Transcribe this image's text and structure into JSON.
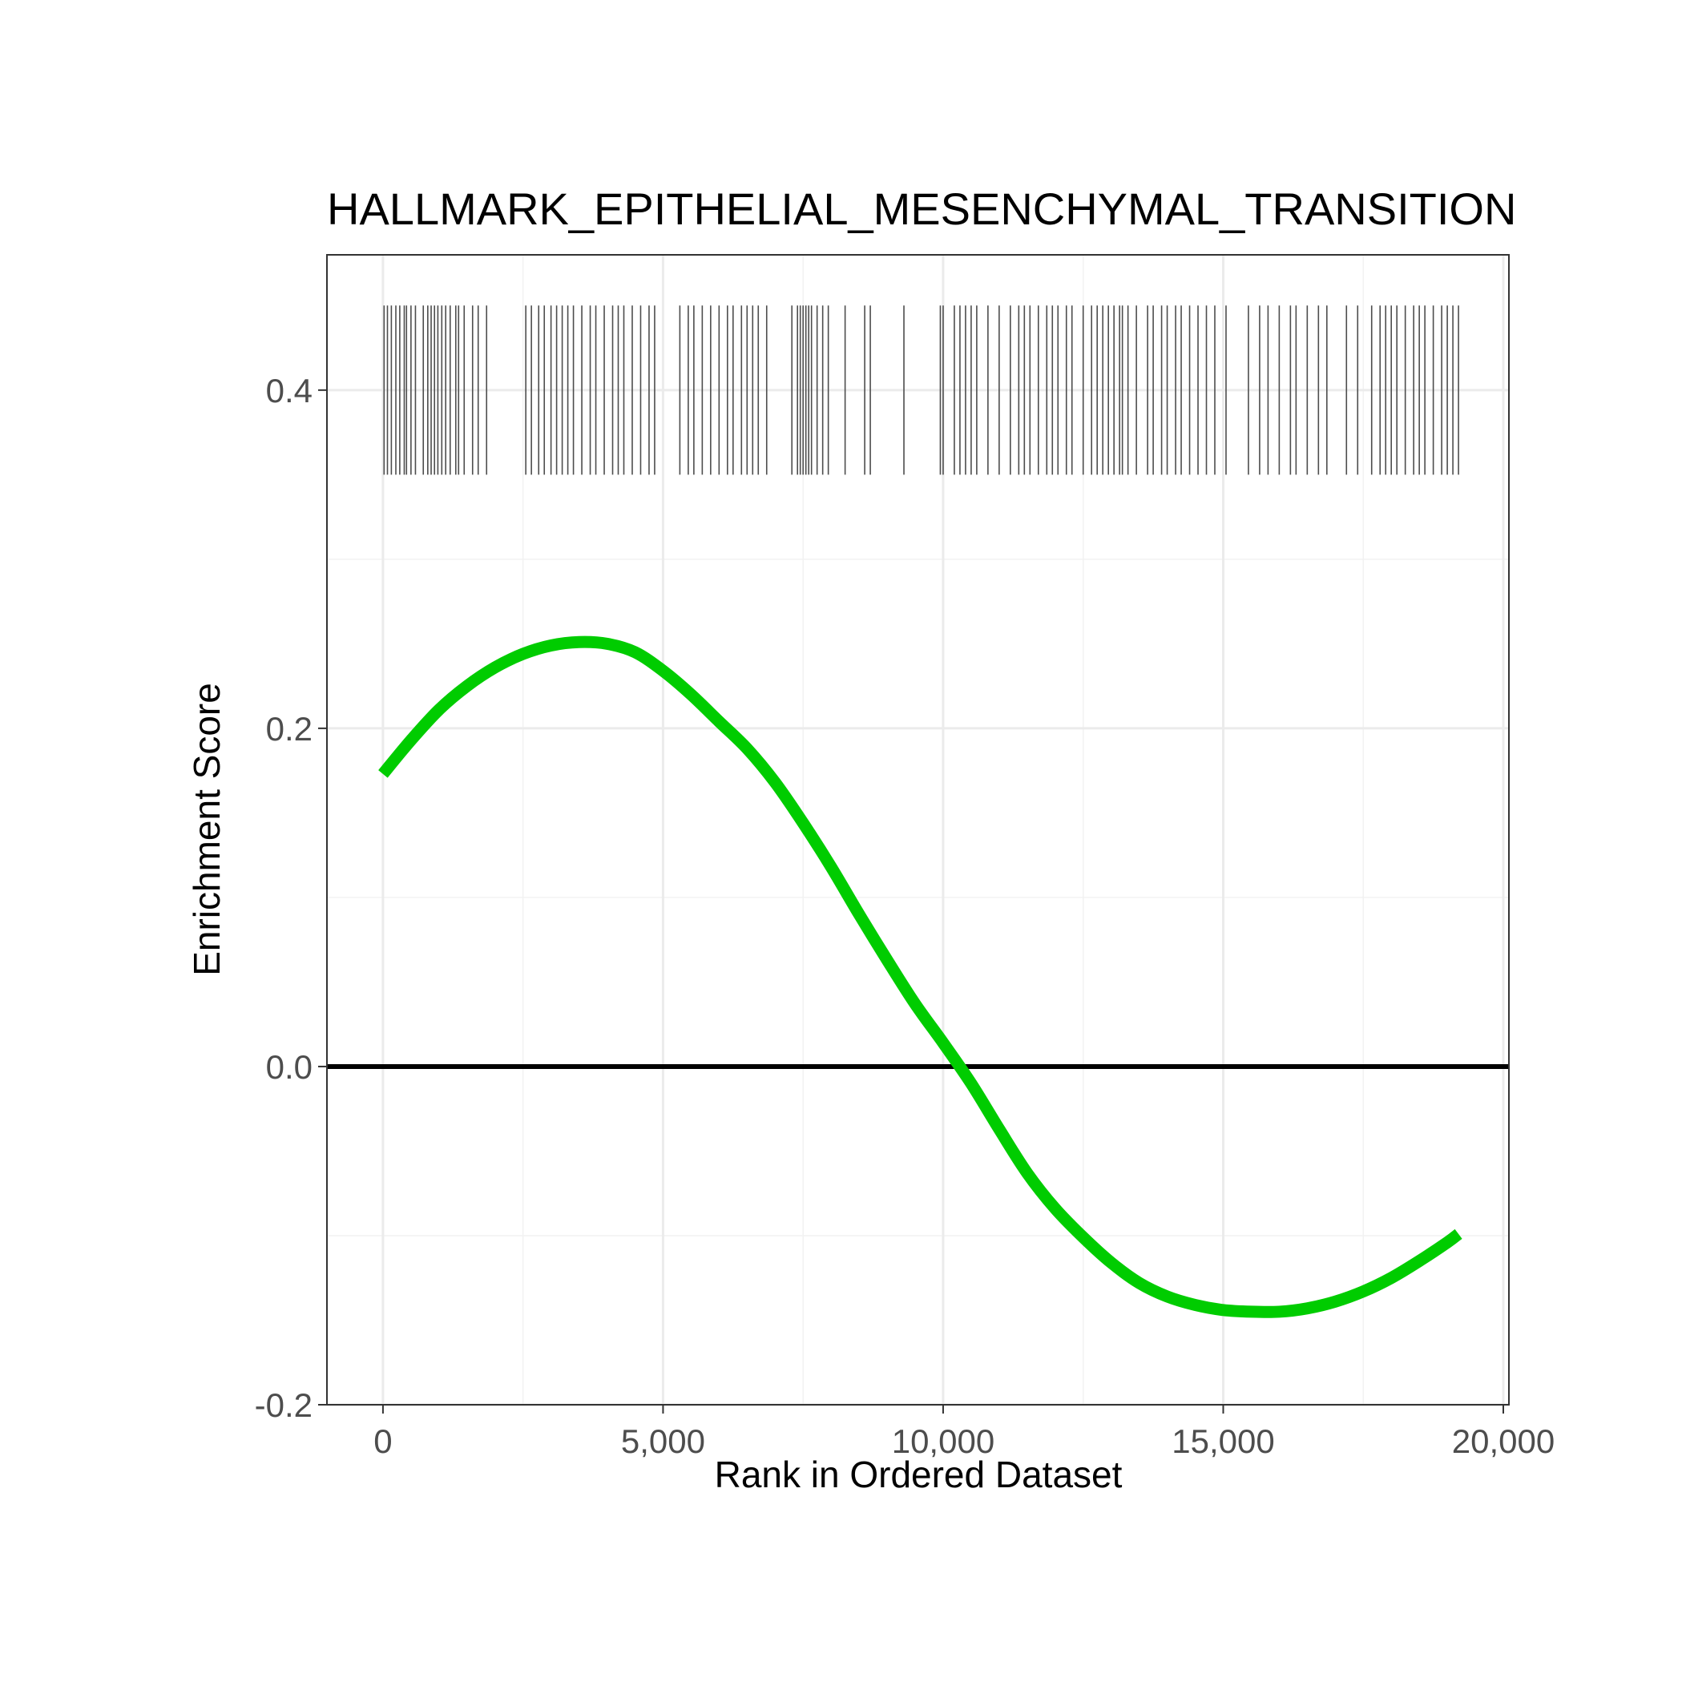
{
  "chart_data": {
    "type": "line",
    "title": "HALLMARK_EPITHELIAL_MESENCHYMAL_TRANSITION",
    "xlabel": "Rank in Ordered Dataset",
    "ylabel": "Enrichment Score",
    "xlim": [
      -1000,
      20100
    ],
    "ylim": [
      -0.2,
      0.48
    ],
    "x_ticks": [
      0,
      5000,
      10000,
      15000,
      20000
    ],
    "x_tick_labels": [
      "0",
      "5,000",
      "10,000",
      "15,000",
      "20,000"
    ],
    "y_ticks": [
      -0.2,
      0.0,
      0.2,
      0.4
    ],
    "y_tick_labels": [
      "-0.2",
      "0.0",
      "0.2",
      "0.4"
    ],
    "y_minor_ticks": [
      -0.1,
      0.1,
      0.3
    ],
    "x_minor_ticks": [
      2500,
      7500,
      12500,
      17500
    ],
    "grid": true,
    "legend": "none",
    "reference_line": {
      "y": 0.0,
      "color": "#000000"
    },
    "rug": {
      "y_range": [
        0.35,
        0.45
      ],
      "color": "#4d4d4d",
      "positions": [
        20,
        80,
        150,
        230,
        300,
        380,
        420,
        500,
        580,
        720,
        800,
        860,
        920,
        980,
        1050,
        1120,
        1200,
        1300,
        1350,
        1450,
        1600,
        1700,
        1850,
        2550,
        2650,
        2780,
        2880,
        3000,
        3100,
        3200,
        3300,
        3400,
        3550,
        3700,
        3800,
        3950,
        4100,
        4200,
        4300,
        4450,
        4600,
        4750,
        4850,
        5300,
        5450,
        5550,
        5700,
        5850,
        6000,
        6150,
        6250,
        6400,
        6500,
        6600,
        6700,
        6850,
        7300,
        7400,
        7450,
        7500,
        7550,
        7600,
        7650,
        7750,
        7850,
        7950,
        8250,
        8600,
        8700,
        9300,
        9950,
        10000,
        10200,
        10300,
        10400,
        10500,
        10600,
        10800,
        11000,
        11200,
        11350,
        11450,
        11550,
        11700,
        11850,
        11950,
        12050,
        12200,
        12300,
        12500,
        12650,
        12750,
        12850,
        12950,
        13050,
        13150,
        13200,
        13300,
        13450,
        13650,
        13750,
        13900,
        14000,
        14150,
        14250,
        14400,
        14550,
        14700,
        14850,
        15050,
        15450,
        15650,
        15800,
        16000,
        16200,
        16300,
        16500,
        16700,
        16850,
        17200,
        17400,
        17650,
        17800,
        17900,
        18000,
        18100,
        18250,
        18400,
        18500,
        18600,
        18750,
        18900,
        19000,
        19100,
        19200
      ]
    },
    "series": [
      {
        "color": "#00cc00",
        "x": [
          0,
          500,
          1000,
          1500,
          2000,
          2500,
          3000,
          3500,
          4000,
          4500,
          5000,
          5500,
          6000,
          6500,
          7000,
          7500,
          8000,
          8500,
          9000,
          9500,
          10000,
          10500,
          11000,
          11500,
          12000,
          12500,
          13000,
          13500,
          14000,
          14500,
          15000,
          15500,
          16000,
          16500,
          17000,
          17500,
          18000,
          18500,
          19000,
          19200
        ],
        "values": [
          0.173,
          0.193,
          0.211,
          0.225,
          0.236,
          0.244,
          0.249,
          0.251,
          0.25,
          0.245,
          0.234,
          0.22,
          0.204,
          0.188,
          0.168,
          0.144,
          0.118,
          0.09,
          0.063,
          0.037,
          0.014,
          -0.01,
          -0.037,
          -0.063,
          -0.084,
          -0.101,
          -0.116,
          -0.128,
          -0.136,
          -0.141,
          -0.144,
          -0.145,
          -0.145,
          -0.143,
          -0.139,
          -0.133,
          -0.125,
          -0.115,
          -0.104,
          -0.099
        ]
      }
    ]
  }
}
